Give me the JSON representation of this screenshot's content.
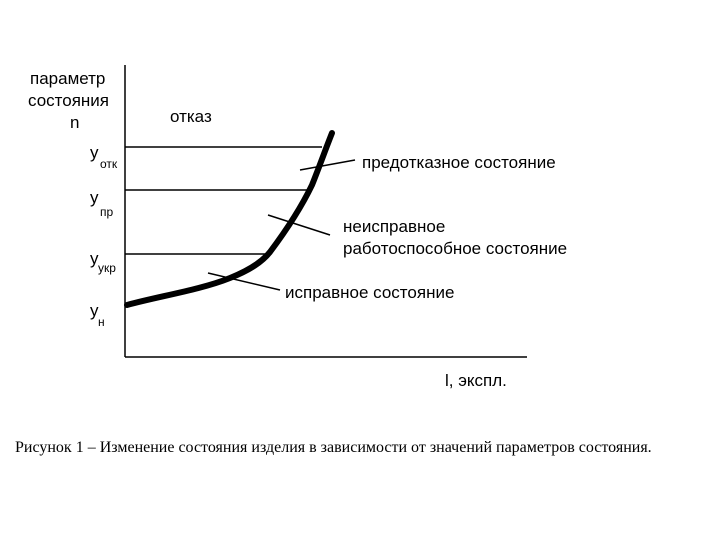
{
  "figure": {
    "y_axis_label": [
      "параметр",
      "состояния",
      "n"
    ],
    "failure_label": "отказ",
    "levels": [
      {
        "symbol": "у",
        "subscript": "отк"
      },
      {
        "symbol": "у",
        "subscript": "пр"
      },
      {
        "symbol": "у",
        "subscript": "укр"
      },
      {
        "symbol": "у",
        "subscript": "н"
      }
    ],
    "regions": [
      "предотказное состояние",
      "неисправное",
      "работоспособное состояние",
      "исправное состояние"
    ],
    "x_axis_label": "l, экспл."
  },
  "caption": "Рисунок 1 – Изменение состояния изделия в зависимости от значений параметров состояния."
}
